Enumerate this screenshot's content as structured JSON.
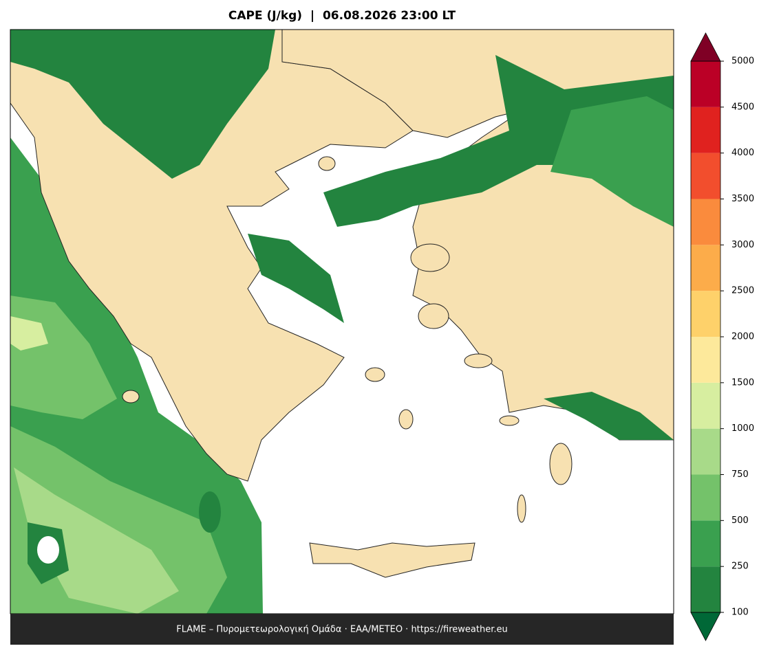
{
  "title": "CAPE (J/kg)  |  06.08.2026 23:00 LT",
  "footer": "FLAME – Πυρομετεωρολογική Ομάδα · ΕΑΑ/METEO · https://fireweather.eu",
  "colorbar": {
    "levels": [
      100,
      250,
      500,
      750,
      1000,
      1500,
      2000,
      2500,
      3000,
      3500,
      4000,
      4500,
      5000
    ],
    "colors": [
      "#23843f",
      "#3aa04f",
      "#74c26a",
      "#a8da89",
      "#d7eea0",
      "#fde99b",
      "#fed16a",
      "#fcac4a",
      "#fa8b3d",
      "#f24e2d",
      "#e0221f",
      "#bb0026"
    ],
    "under_color": "#006837",
    "over_color": "#7f0025"
  }
}
